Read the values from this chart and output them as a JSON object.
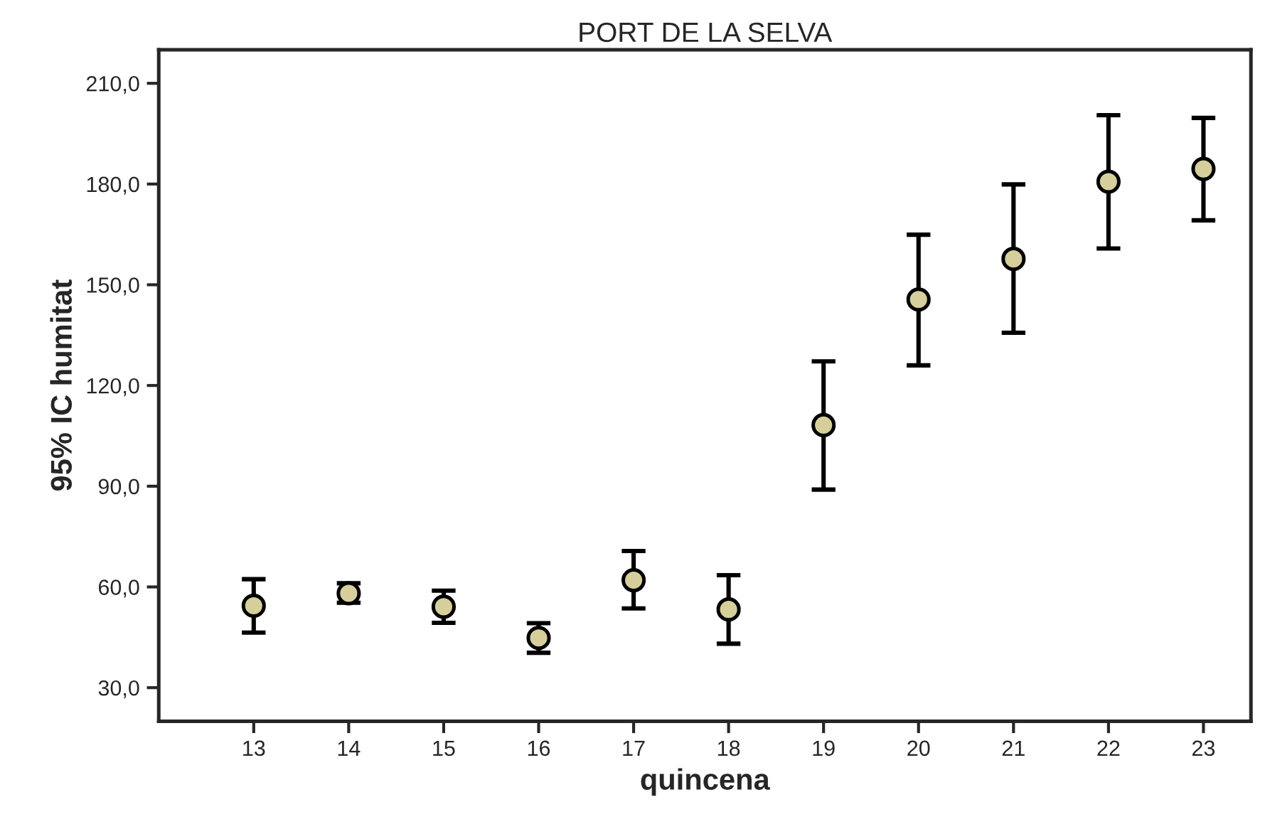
{
  "chart_data": {
    "type": "scatter",
    "title": "PORT DE LA SELVA",
    "xlabel": "quincena",
    "ylabel": "95% IC humitat",
    "x": [
      13,
      14,
      15,
      16,
      17,
      18,
      19,
      20,
      21,
      22,
      23
    ],
    "values": [
      54.4,
      58.1,
      54.1,
      44.8,
      62.0,
      53.3,
      108.2,
      145.6,
      157.7,
      180.7,
      184.5
    ],
    "errors": [
      [
        46.4,
        62.3
      ],
      [
        55.3,
        61.1
      ],
      [
        49.3,
        58.9
      ],
      [
        40.4,
        49.2
      ],
      [
        53.6,
        70.7
      ],
      [
        43.1,
        63.5
      ],
      [
        89.0,
        127.2
      ],
      [
        126.0,
        164.9
      ],
      [
        135.7,
        179.9
      ],
      [
        160.8,
        200.5
      ],
      [
        169.2,
        199.7
      ]
    ],
    "color": "#d6cf9c",
    "marker": "circle",
    "grid": false,
    "legend": false,
    "xlim": [
      12,
      23.5
    ],
    "xticks": [
      13,
      14,
      15,
      16,
      17,
      18,
      19,
      20,
      21,
      22,
      23
    ],
    "ylim": [
      20,
      220
    ],
    "yticks": [
      {
        "value": 30,
        "label": "30,0"
      },
      {
        "value": 60,
        "label": "60,0"
      },
      {
        "value": 90,
        "label": "90,0"
      },
      {
        "value": 120,
        "label": "120,0"
      },
      {
        "value": 150,
        "label": "150,0"
      },
      {
        "value": 180,
        "label": "180,0"
      },
      {
        "value": 210,
        "label": "210,0"
      }
    ]
  }
}
